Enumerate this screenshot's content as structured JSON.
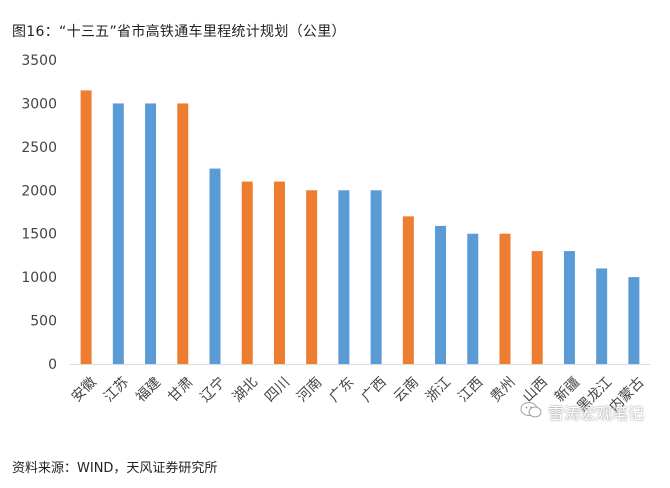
{
  "title": "图16：“十三五”省市高铁通车里程统计规划（公里）",
  "source": "资料来源：WIND，天风证券研究所",
  "watermark": {
    "text": "雪涛宏观笔记",
    "icon": "wechat-icon"
  },
  "colors": {
    "orange": "#ED7D31",
    "blue": "#5B9BD5"
  },
  "chart_data": {
    "type": "bar",
    "title": "“十三五”省市高铁通车里程统计规划（公里）",
    "xlabel": "",
    "ylabel": "",
    "ylim": [
      0,
      3500
    ],
    "yticks": [
      0,
      500,
      1000,
      1500,
      2000,
      2500,
      3000,
      3500
    ],
    "grid": false,
    "categories": [
      "安徽",
      "江苏",
      "福建",
      "甘肃",
      "辽宁",
      "湖北",
      "四川",
      "河南",
      "广东",
      "广西",
      "云南",
      "浙江",
      "江西",
      "贵州",
      "山西",
      "新疆",
      "黑龙江",
      "内蒙古"
    ],
    "values": [
      3150,
      3000,
      3000,
      3000,
      2250,
      2100,
      2100,
      2000,
      2000,
      2000,
      1700,
      1590,
      1500,
      1500,
      1300,
      1300,
      1100,
      1000
    ],
    "bar_colors": [
      "orange",
      "blue",
      "blue",
      "orange",
      "blue",
      "orange",
      "orange",
      "orange",
      "blue",
      "blue",
      "orange",
      "blue",
      "blue",
      "orange",
      "orange",
      "blue",
      "blue",
      "blue"
    ]
  }
}
